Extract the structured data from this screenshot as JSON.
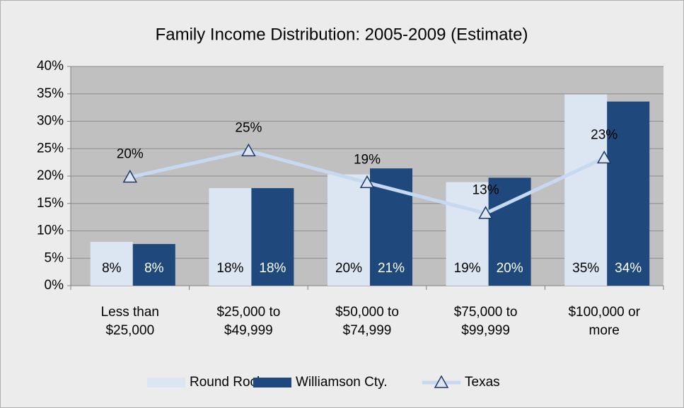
{
  "chart_data": {
    "type": "bar-line",
    "title": "Family Income Distribution: 2005-2009 (Estimate)",
    "categories": [
      "Less than\n$25,000",
      "$25,000 to\n$49,999",
      "$50,000 to\n$74,999",
      "$75,000 to\n$99,999",
      "$100,000 or\nmore"
    ],
    "series": [
      {
        "name": "Round Rock",
        "type": "bar",
        "color": "#dce6f2",
        "label_color": "#000000",
        "values": [
          8.0,
          17.8,
          20.3,
          18.9,
          34.9
        ],
        "value_labels": [
          "8%",
          "18%",
          "20%",
          "19%",
          "35%"
        ]
      },
      {
        "name": "Williamson Cty.",
        "type": "bar",
        "color": "#1f497d",
        "label_color": "#ffffff",
        "values": [
          7.6,
          17.8,
          21.4,
          19.7,
          33.6
        ],
        "value_labels": [
          "8%",
          "18%",
          "21%",
          "20%",
          "34%"
        ]
      },
      {
        "name": "Texas",
        "type": "line",
        "color": "#c6d9f1",
        "marker_color": "#1f3864",
        "values": [
          19.8,
          24.6,
          18.8,
          13.2,
          23.3
        ],
        "value_labels": [
          "20%",
          "25%",
          "19%",
          "13%",
          "23%"
        ]
      }
    ],
    "ylim": [
      0,
      40
    ],
    "yticks": [
      {
        "value": 0,
        "label": "0%"
      },
      {
        "value": 5,
        "label": "5%"
      },
      {
        "value": 10,
        "label": "10%"
      },
      {
        "value": 15,
        "label": "15%"
      },
      {
        "value": 20,
        "label": "20%"
      },
      {
        "value": 25,
        "label": "25%"
      },
      {
        "value": 30,
        "label": "30%"
      },
      {
        "value": 35,
        "label": "35%"
      },
      {
        "value": 40,
        "label": "40%"
      }
    ],
    "grid": true
  }
}
